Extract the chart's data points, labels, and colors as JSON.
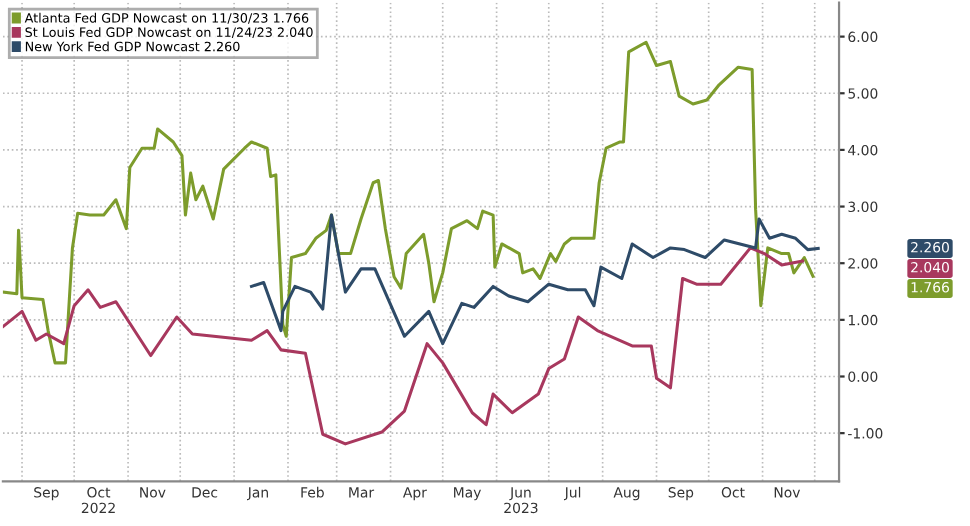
{
  "chart_data": {
    "type": "line",
    "legend": "top left",
    "grid": true,
    "marker": "none",
    "line_style": "solid",
    "xlim": [
      "2022-08-21",
      "2023-12-15"
    ],
    "ylim": [
      -1.85,
      6.6
    ],
    "yticks": [
      {
        "value": -1,
        "label": "-1.00"
      },
      {
        "value": 0,
        "label": "0.00"
      },
      {
        "value": 1,
        "label": "1.00"
      },
      {
        "value": 2,
        "label": "2.00"
      },
      {
        "value": 3,
        "label": "3.00"
      },
      {
        "value": 4,
        "label": "4.00"
      },
      {
        "value": 5,
        "label": "5.00"
      },
      {
        "value": 6,
        "label": "6.00"
      }
    ],
    "xticks": [
      {
        "value": "2022-09-15",
        "label": "Sep"
      },
      {
        "value": "2022-10-15",
        "label": "Oct\n2022"
      },
      {
        "value": "2022-11-15",
        "label": "Nov"
      },
      {
        "value": "2022-12-15",
        "label": "Dec"
      },
      {
        "value": "2023-01-15",
        "label": "Jan"
      },
      {
        "value": "2023-02-15",
        "label": "Feb"
      },
      {
        "value": "2023-03-15",
        "label": "Mar"
      },
      {
        "value": "2023-04-15",
        "label": "Apr"
      },
      {
        "value": "2023-05-15",
        "label": "May"
      },
      {
        "value": "2023-06-15",
        "label": "Jun\n2023"
      },
      {
        "value": "2023-07-15",
        "label": "Jul"
      },
      {
        "value": "2023-08-15",
        "label": "Aug"
      },
      {
        "value": "2023-09-15",
        "label": "Sep"
      },
      {
        "value": "2023-10-15",
        "label": "Oct"
      },
      {
        "value": "2023-11-15",
        "label": "Nov"
      },
      {
        "value": "2022-09-01",
        "label": null
      },
      {
        "value": "2022-10-01",
        "label": null
      },
      {
        "value": "2022-11-01",
        "label": null
      },
      {
        "value": "2022-12-01",
        "label": null
      },
      {
        "value": "2023-01-01",
        "label": null
      },
      {
        "value": "2023-02-01",
        "label": null
      },
      {
        "value": "2023-03-01",
        "label": null
      },
      {
        "value": "2023-04-01",
        "label": null
      },
      {
        "value": "2023-05-01",
        "label": null
      },
      {
        "value": "2023-06-01",
        "label": null
      },
      {
        "value": "2023-07-01",
        "label": null
      },
      {
        "value": "2023-08-01",
        "label": null
      },
      {
        "value": "2023-09-01",
        "label": null
      },
      {
        "value": "2023-10-01",
        "label": null
      },
      {
        "value": "2023-11-01",
        "label": null
      },
      {
        "value": "2023-12-01",
        "label": null
      }
    ],
    "series": [
      {
        "name": "Atlanta Fed GDP Nowcast on 11/30/23 1.766",
        "color": "#7d9c2c",
        "x": [
          "2022-08-21",
          "2022-08-29",
          "2022-08-30",
          "2022-09-01",
          "2022-09-13",
          "2022-09-16",
          "2022-09-20",
          "2022-09-26",
          "2022-09-30",
          "2022-10-03",
          "2022-10-10",
          "2022-10-18",
          "2022-10-25",
          "2022-10-31",
          "2022-11-02",
          "2022-11-09",
          "2022-11-16",
          "2022-11-18",
          "2022-11-27",
          "2022-12-02",
          "2022-12-04",
          "2022-12-07",
          "2022-12-10",
          "2022-12-14",
          "2022-12-20",
          "2022-12-26",
          "2023-01-07",
          "2023-01-11",
          "2023-01-20",
          "2023-01-22",
          "2023-01-25",
          "2023-01-29",
          "2023-01-31",
          "2023-02-03",
          "2023-02-11",
          "2023-02-17",
          "2023-02-23",
          "2023-02-26",
          "2023-03-02",
          "2023-03-09",
          "2023-03-15",
          "2023-03-22",
          "2023-03-25",
          "2023-03-29",
          "2023-04-03",
          "2023-04-07",
          "2023-04-10",
          "2023-04-20",
          "2023-04-23",
          "2023-04-26",
          "2023-05-01",
          "2023-05-06",
          "2023-05-15",
          "2023-05-21",
          "2023-05-24",
          "2023-05-30",
          "2023-05-31",
          "2023-06-04",
          "2023-06-14",
          "2023-06-16",
          "2023-06-22",
          "2023-06-26",
          "2023-07-02",
          "2023-07-05",
          "2023-07-10",
          "2023-07-14",
          "2023-07-27",
          "2023-07-30",
          "2023-08-03",
          "2023-08-11",
          "2023-08-13",
          "2023-08-16",
          "2023-08-26",
          "2023-09-01",
          "2023-09-09",
          "2023-09-14",
          "2023-09-22",
          "2023-09-30",
          "2023-10-07",
          "2023-10-18",
          "2023-10-26",
          "2023-10-28",
          "2023-10-31",
          "2023-11-04",
          "2023-11-12",
          "2023-11-16",
          "2023-11-19",
          "2023-11-25",
          "2023-11-30"
        ],
        "values": [
          1.49,
          1.46,
          2.58,
          1.39,
          1.36,
          0.81,
          0.24,
          0.24,
          2.27,
          2.88,
          2.85,
          2.85,
          3.12,
          2.61,
          3.69,
          4.03,
          4.03,
          4.37,
          4.14,
          3.9,
          2.85,
          3.59,
          3.12,
          3.36,
          2.78,
          3.66,
          4.03,
          4.14,
          4.03,
          3.53,
          3.56,
          0.92,
          0.71,
          2.1,
          2.17,
          2.44,
          2.58,
          2.85,
          2.17,
          2.17,
          2.78,
          3.42,
          3.46,
          2.61,
          1.76,
          1.56,
          2.17,
          2.51,
          2.0,
          1.32,
          1.83,
          2.61,
          2.75,
          2.61,
          2.92,
          2.85,
          1.93,
          2.34,
          2.17,
          1.83,
          1.9,
          1.73,
          2.17,
          2.03,
          2.34,
          2.44,
          2.44,
          3.42,
          4.03,
          4.14,
          4.14,
          5.73,
          5.9,
          5.49,
          5.56,
          4.95,
          4.81,
          4.88,
          5.15,
          5.46,
          5.42,
          2.95,
          1.25,
          2.27,
          2.17,
          2.17,
          1.83,
          2.1,
          1.77
        ]
      },
      {
        "name": "St Louis Fed GDP Nowcast on 11/24/23 2.040",
        "color": "#a8385e",
        "x": [
          "2022-08-21",
          "2022-09-01",
          "2022-09-09",
          "2022-09-15",
          "2022-09-25",
          "2022-10-01",
          "2022-10-09",
          "2022-10-16",
          "2022-10-25",
          "2022-11-14",
          "2022-11-29",
          "2022-12-08",
          "2023-01-11",
          "2023-01-20",
          "2023-01-28",
          "2023-02-11",
          "2023-02-21",
          "2023-03-06",
          "2023-03-27",
          "2023-04-09",
          "2023-04-22",
          "2023-05-01",
          "2023-05-18",
          "2023-05-26",
          "2023-05-30",
          "2023-06-10",
          "2023-06-25",
          "2023-07-01",
          "2023-07-10",
          "2023-07-18",
          "2023-07-29",
          "2023-08-18",
          "2023-08-29",
          "2023-09-01",
          "2023-09-09",
          "2023-09-16",
          "2023-09-24",
          "2023-10-08",
          "2023-10-25",
          "2023-11-02",
          "2023-11-12",
          "2023-11-24"
        ],
        "values": [
          0.88,
          1.15,
          0.64,
          0.75,
          0.58,
          1.25,
          1.53,
          1.22,
          1.32,
          0.37,
          1.05,
          0.75,
          0.64,
          0.81,
          0.47,
          0.41,
          -1.02,
          -1.19,
          -0.98,
          -0.61,
          0.58,
          0.24,
          -0.64,
          -0.85,
          -0.31,
          -0.64,
          -0.31,
          0.14,
          0.31,
          1.05,
          0.81,
          0.54,
          0.54,
          -0.03,
          -0.2,
          1.73,
          1.63,
          1.63,
          2.27,
          2.17,
          1.97,
          2.04
        ]
      },
      {
        "name": "New York Fed GDP Nowcast 2.260",
        "color": "#2e4b68",
        "x": [
          "2023-01-11",
          "2023-01-18",
          "2023-01-28",
          "2023-01-29",
          "2023-02-05",
          "2023-02-14",
          "2023-02-21",
          "2023-02-26",
          "2023-03-06",
          "2023-03-15",
          "2023-03-23",
          "2023-04-09",
          "2023-04-23",
          "2023-05-01",
          "2023-05-12",
          "2023-05-19",
          "2023-05-30",
          "2023-06-08",
          "2023-06-19",
          "2023-07-01",
          "2023-07-12",
          "2023-07-22",
          "2023-07-27",
          "2023-07-31",
          "2023-08-12",
          "2023-08-18",
          "2023-08-30",
          "2023-09-09",
          "2023-09-17",
          "2023-09-29",
          "2023-10-10",
          "2023-10-28",
          "2023-10-30",
          "2023-11-05",
          "2023-11-12",
          "2023-11-20",
          "2023-11-27",
          "2023-12-03"
        ],
        "values": [
          1.59,
          1.66,
          0.81,
          1.15,
          1.59,
          1.49,
          1.19,
          2.85,
          1.49,
          1.9,
          1.9,
          0.71,
          1.15,
          0.58,
          1.29,
          1.22,
          1.59,
          1.42,
          1.32,
          1.63,
          1.53,
          1.53,
          1.25,
          1.93,
          1.73,
          2.34,
          2.1,
          2.27,
          2.24,
          2.1,
          2.41,
          2.27,
          2.78,
          2.44,
          2.51,
          2.44,
          2.24,
          2.26
        ]
      }
    ],
    "annotations": [
      "1.766",
      "2.040",
      "2.260"
    ]
  }
}
